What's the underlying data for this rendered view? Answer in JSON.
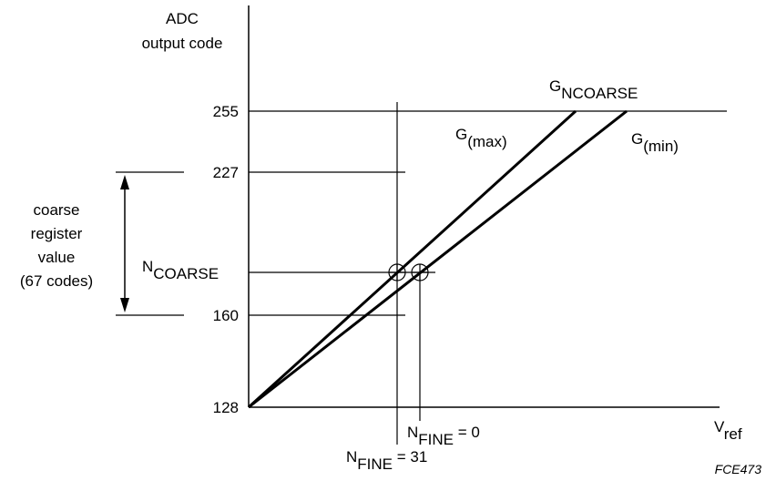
{
  "y_axis": {
    "title_line1": "ADC",
    "title_line2": "output code"
  },
  "x_axis": {
    "label_main": "V",
    "label_sub": "ref"
  },
  "y_ticks": {
    "t255": "255",
    "t227": "227",
    "t160": "160",
    "t128": "128"
  },
  "n_coarse": {
    "main": "N",
    "sub": "COARSE"
  },
  "g_ncoarse": {
    "main": "G",
    "sub": "NCOARSE"
  },
  "g_max": {
    "main": "G",
    "sub": "(max)"
  },
  "g_min": {
    "main": "G",
    "sub": "(min)"
  },
  "n_fine_0": {
    "main": "N",
    "sub": "FINE",
    "suffix": " = 0"
  },
  "n_fine_31": {
    "main": "N",
    "sub": "FINE",
    "suffix": " = 31"
  },
  "coarse_note": {
    "line1": "coarse",
    "line2": "register",
    "line3": "value",
    "line4": "(67 codes)"
  },
  "figure_code": "FCE473",
  "colors": {
    "ink": "#000000",
    "background": "#ffffff"
  }
}
